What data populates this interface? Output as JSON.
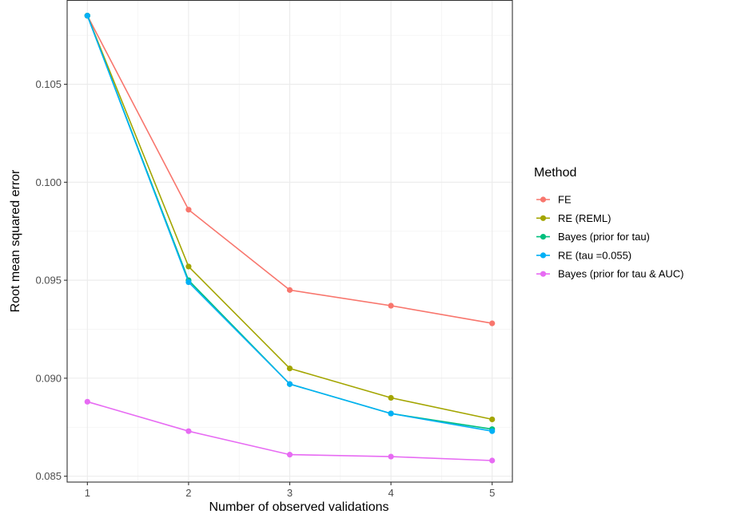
{
  "chart_data": {
    "type": "line",
    "xlabel": "Number of observed validations",
    "ylabel": "Root mean squared error",
    "x": [
      1,
      2,
      3,
      4,
      5
    ],
    "xticks": [
      "1",
      "2",
      "3",
      "4",
      "5"
    ],
    "yticks": [
      "0.085",
      "0.090",
      "0.095",
      "0.100",
      "0.105"
    ],
    "xlim": [
      0.8,
      5.2
    ],
    "ylim": [
      0.0847,
      0.1093
    ],
    "grid": true,
    "legend": {
      "title": "Method",
      "placement": "right"
    },
    "series": [
      {
        "name": "FE",
        "color": "#F8766D",
        "values": [
          0.1085,
          0.0986,
          0.0945,
          0.0937,
          0.0928
        ]
      },
      {
        "name": "RE (REML)",
        "color": "#A3A500",
        "values": [
          0.1085,
          0.0957,
          0.0905,
          0.089,
          0.0879
        ]
      },
      {
        "name": "Bayes (prior for tau)",
        "color": "#00BF7D",
        "values": [
          0.1085,
          0.095,
          0.0897,
          0.0882,
          0.0874
        ]
      },
      {
        "name": "RE (tau =0.055)",
        "color": "#00B0F6",
        "values": [
          0.1085,
          0.0949,
          0.0897,
          0.0882,
          0.0873
        ]
      },
      {
        "name": "Bayes (prior for tau & AUC)",
        "color": "#E76BF3",
        "values": [
          0.0888,
          0.0873,
          0.0861,
          0.086,
          0.0858
        ]
      }
    ]
  }
}
